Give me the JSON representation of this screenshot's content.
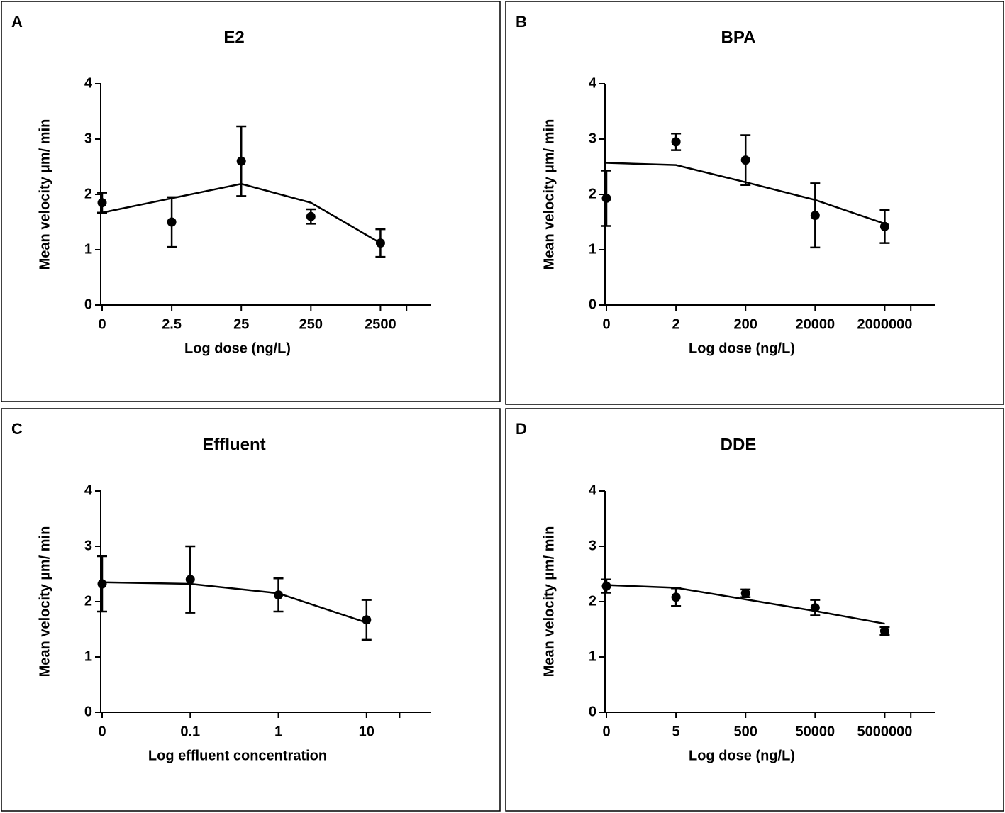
{
  "chart_data": [
    {
      "type": "scatter",
      "panel": "A",
      "title": "E2",
      "x_label": "Log dose (ng/L)",
      "y_label": "Mean velocity µm/ min",
      "categories": [
        "0",
        "2.5",
        "25",
        "250",
        "2500"
      ],
      "series": [
        {
          "color": "#000000",
          "values": [
            1.85,
            1.5,
            2.6,
            1.6,
            1.12
          ],
          "errors": [
            0.18,
            0.45,
            0.63,
            0.13,
            0.25
          ]
        }
      ],
      "fit": [
        1.67,
        1.93,
        2.19,
        1.85,
        1.12
      ],
      "ylim": [
        0,
        4
      ],
      "yticks": [
        0,
        1,
        2,
        3,
        4
      ]
    },
    {
      "type": "scatter",
      "panel": "B",
      "title": "BPA",
      "x_label": "Log dose (ng/L)",
      "y_label": "Mean velocity µm/ min",
      "categories": [
        "0",
        "2",
        "200",
        "20000",
        "2000000"
      ],
      "series": [
        {
          "color": "#000000",
          "values": [
            1.93,
            2.95,
            2.62,
            1.62,
            1.42
          ],
          "errors": [
            0.5,
            0.15,
            0.45,
            0.58,
            0.3
          ]
        }
      ],
      "fit": [
        2.57,
        2.53,
        2.22,
        1.9,
        1.47
      ],
      "ylim": [
        0,
        4
      ],
      "yticks": [
        0,
        1,
        2,
        3,
        4
      ]
    },
    {
      "type": "scatter",
      "panel": "C",
      "title": "Effluent",
      "x_label": "Log effluent concentration",
      "y_label": "Mean velocity µm/ min",
      "categories": [
        "0",
        "0.1",
        "1",
        "10"
      ],
      "series": [
        {
          "color": "#000000",
          "values": [
            2.32,
            2.4,
            2.12,
            1.67
          ],
          "errors": [
            0.5,
            0.6,
            0.3,
            0.36
          ]
        }
      ],
      "fit": [
        2.35,
        2.32,
        2.15,
        1.62
      ],
      "ylim": [
        0,
        4
      ],
      "yticks": [
        0,
        1,
        2,
        3,
        4
      ]
    },
    {
      "type": "scatter",
      "panel": "D",
      "title": "DDE",
      "x_label": "Log dose (ng/L)",
      "y_label": "Mean velocity µm/ min",
      "categories": [
        "0",
        "5",
        "500",
        "50000",
        "5000000"
      ],
      "series": [
        {
          "color": "#000000",
          "values": [
            2.28,
            2.08,
            2.15,
            1.89,
            1.47
          ],
          "errors": [
            0.12,
            0.16,
            0.07,
            0.14,
            0.07
          ]
        }
      ],
      "fit": [
        2.3,
        2.25,
        2.04,
        1.83,
        1.6
      ],
      "ylim": [
        0,
        4
      ],
      "yticks": [
        0,
        1,
        2,
        3,
        4
      ]
    }
  ]
}
